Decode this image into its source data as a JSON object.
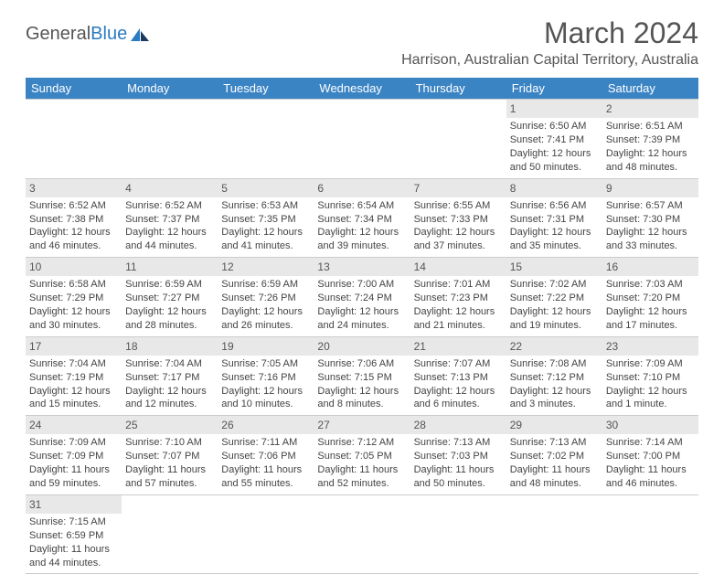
{
  "brand": {
    "part1": "General",
    "part2": "Blue"
  },
  "title": "March 2024",
  "location": "Harrison, Australian Capital Territory, Australia",
  "colors": {
    "header_bg": "#3b84c4",
    "header_text": "#ffffff",
    "daynum_bg": "#e8e8e8",
    "text": "#444444",
    "title_text": "#555555",
    "border": "#cccccc",
    "brand_blue": "#2b7bc0"
  },
  "daysOfWeek": [
    "Sunday",
    "Monday",
    "Tuesday",
    "Wednesday",
    "Thursday",
    "Friday",
    "Saturday"
  ],
  "weeks": [
    [
      {
        "n": "",
        "lines": []
      },
      {
        "n": "",
        "lines": []
      },
      {
        "n": "",
        "lines": []
      },
      {
        "n": "",
        "lines": []
      },
      {
        "n": "",
        "lines": []
      },
      {
        "n": "1",
        "lines": [
          "Sunrise: 6:50 AM",
          "Sunset: 7:41 PM",
          "Daylight: 12 hours",
          "and 50 minutes."
        ]
      },
      {
        "n": "2",
        "lines": [
          "Sunrise: 6:51 AM",
          "Sunset: 7:39 PM",
          "Daylight: 12 hours",
          "and 48 minutes."
        ]
      }
    ],
    [
      {
        "n": "3",
        "lines": [
          "Sunrise: 6:52 AM",
          "Sunset: 7:38 PM",
          "Daylight: 12 hours",
          "and 46 minutes."
        ]
      },
      {
        "n": "4",
        "lines": [
          "Sunrise: 6:52 AM",
          "Sunset: 7:37 PM",
          "Daylight: 12 hours",
          "and 44 minutes."
        ]
      },
      {
        "n": "5",
        "lines": [
          "Sunrise: 6:53 AM",
          "Sunset: 7:35 PM",
          "Daylight: 12 hours",
          "and 41 minutes."
        ]
      },
      {
        "n": "6",
        "lines": [
          "Sunrise: 6:54 AM",
          "Sunset: 7:34 PM",
          "Daylight: 12 hours",
          "and 39 minutes."
        ]
      },
      {
        "n": "7",
        "lines": [
          "Sunrise: 6:55 AM",
          "Sunset: 7:33 PM",
          "Daylight: 12 hours",
          "and 37 minutes."
        ]
      },
      {
        "n": "8",
        "lines": [
          "Sunrise: 6:56 AM",
          "Sunset: 7:31 PM",
          "Daylight: 12 hours",
          "and 35 minutes."
        ]
      },
      {
        "n": "9",
        "lines": [
          "Sunrise: 6:57 AM",
          "Sunset: 7:30 PM",
          "Daylight: 12 hours",
          "and 33 minutes."
        ]
      }
    ],
    [
      {
        "n": "10",
        "lines": [
          "Sunrise: 6:58 AM",
          "Sunset: 7:29 PM",
          "Daylight: 12 hours",
          "and 30 minutes."
        ]
      },
      {
        "n": "11",
        "lines": [
          "Sunrise: 6:59 AM",
          "Sunset: 7:27 PM",
          "Daylight: 12 hours",
          "and 28 minutes."
        ]
      },
      {
        "n": "12",
        "lines": [
          "Sunrise: 6:59 AM",
          "Sunset: 7:26 PM",
          "Daylight: 12 hours",
          "and 26 minutes."
        ]
      },
      {
        "n": "13",
        "lines": [
          "Sunrise: 7:00 AM",
          "Sunset: 7:24 PM",
          "Daylight: 12 hours",
          "and 24 minutes."
        ]
      },
      {
        "n": "14",
        "lines": [
          "Sunrise: 7:01 AM",
          "Sunset: 7:23 PM",
          "Daylight: 12 hours",
          "and 21 minutes."
        ]
      },
      {
        "n": "15",
        "lines": [
          "Sunrise: 7:02 AM",
          "Sunset: 7:22 PM",
          "Daylight: 12 hours",
          "and 19 minutes."
        ]
      },
      {
        "n": "16",
        "lines": [
          "Sunrise: 7:03 AM",
          "Sunset: 7:20 PM",
          "Daylight: 12 hours",
          "and 17 minutes."
        ]
      }
    ],
    [
      {
        "n": "17",
        "lines": [
          "Sunrise: 7:04 AM",
          "Sunset: 7:19 PM",
          "Daylight: 12 hours",
          "and 15 minutes."
        ]
      },
      {
        "n": "18",
        "lines": [
          "Sunrise: 7:04 AM",
          "Sunset: 7:17 PM",
          "Daylight: 12 hours",
          "and 12 minutes."
        ]
      },
      {
        "n": "19",
        "lines": [
          "Sunrise: 7:05 AM",
          "Sunset: 7:16 PM",
          "Daylight: 12 hours",
          "and 10 minutes."
        ]
      },
      {
        "n": "20",
        "lines": [
          "Sunrise: 7:06 AM",
          "Sunset: 7:15 PM",
          "Daylight: 12 hours",
          "and 8 minutes."
        ]
      },
      {
        "n": "21",
        "lines": [
          "Sunrise: 7:07 AM",
          "Sunset: 7:13 PM",
          "Daylight: 12 hours",
          "and 6 minutes."
        ]
      },
      {
        "n": "22",
        "lines": [
          "Sunrise: 7:08 AM",
          "Sunset: 7:12 PM",
          "Daylight: 12 hours",
          "and 3 minutes."
        ]
      },
      {
        "n": "23",
        "lines": [
          "Sunrise: 7:09 AM",
          "Sunset: 7:10 PM",
          "Daylight: 12 hours",
          "and 1 minute."
        ]
      }
    ],
    [
      {
        "n": "24",
        "lines": [
          "Sunrise: 7:09 AM",
          "Sunset: 7:09 PM",
          "Daylight: 11 hours",
          "and 59 minutes."
        ]
      },
      {
        "n": "25",
        "lines": [
          "Sunrise: 7:10 AM",
          "Sunset: 7:07 PM",
          "Daylight: 11 hours",
          "and 57 minutes."
        ]
      },
      {
        "n": "26",
        "lines": [
          "Sunrise: 7:11 AM",
          "Sunset: 7:06 PM",
          "Daylight: 11 hours",
          "and 55 minutes."
        ]
      },
      {
        "n": "27",
        "lines": [
          "Sunrise: 7:12 AM",
          "Sunset: 7:05 PM",
          "Daylight: 11 hours",
          "and 52 minutes."
        ]
      },
      {
        "n": "28",
        "lines": [
          "Sunrise: 7:13 AM",
          "Sunset: 7:03 PM",
          "Daylight: 11 hours",
          "and 50 minutes."
        ]
      },
      {
        "n": "29",
        "lines": [
          "Sunrise: 7:13 AM",
          "Sunset: 7:02 PM",
          "Daylight: 11 hours",
          "and 48 minutes."
        ]
      },
      {
        "n": "30",
        "lines": [
          "Sunrise: 7:14 AM",
          "Sunset: 7:00 PM",
          "Daylight: 11 hours",
          "and 46 minutes."
        ]
      }
    ],
    [
      {
        "n": "31",
        "lines": [
          "Sunrise: 7:15 AM",
          "Sunset: 6:59 PM",
          "Daylight: 11 hours",
          "and 44 minutes."
        ]
      },
      {
        "n": "",
        "lines": []
      },
      {
        "n": "",
        "lines": []
      },
      {
        "n": "",
        "lines": []
      },
      {
        "n": "",
        "lines": []
      },
      {
        "n": "",
        "lines": []
      },
      {
        "n": "",
        "lines": []
      }
    ]
  ]
}
